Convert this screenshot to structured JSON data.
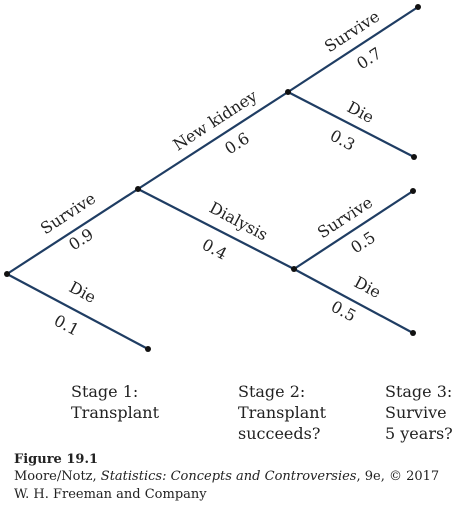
{
  "branches": [
    {
      "id": "survive1",
      "event": "Survive",
      "prob": "0.9"
    },
    {
      "id": "die1",
      "event": "Die",
      "prob": "0.1"
    },
    {
      "id": "newkidney",
      "event": "New kidney",
      "prob": "0.6"
    },
    {
      "id": "dialysis",
      "event": "Dialysis",
      "prob": "0.4"
    },
    {
      "id": "survive3a",
      "event": "Survive",
      "prob": "0.7"
    },
    {
      "id": "die3a",
      "event": "Die",
      "prob": "0.3"
    },
    {
      "id": "survive3b",
      "event": "Survive",
      "prob": "0.5"
    },
    {
      "id": "die3b",
      "event": "Die",
      "prob": "0.5"
    }
  ],
  "stages": [
    {
      "line1": "Stage 1:",
      "line2": "Transplant",
      "line3": ""
    },
    {
      "line1": "Stage 2:",
      "line2": "Transplant",
      "line3": "succeeds?"
    },
    {
      "line1": "Stage 3:",
      "line2": "Survive",
      "line3": "5 years?"
    }
  ],
  "caption": {
    "figure": "Figure 19.1",
    "authors": "Moore/Notz, ",
    "book": "Statistics: Concepts and Controversies",
    "rest1": ", 9e, © 2017",
    "line2": "W. H. Freeman and Company"
  }
}
